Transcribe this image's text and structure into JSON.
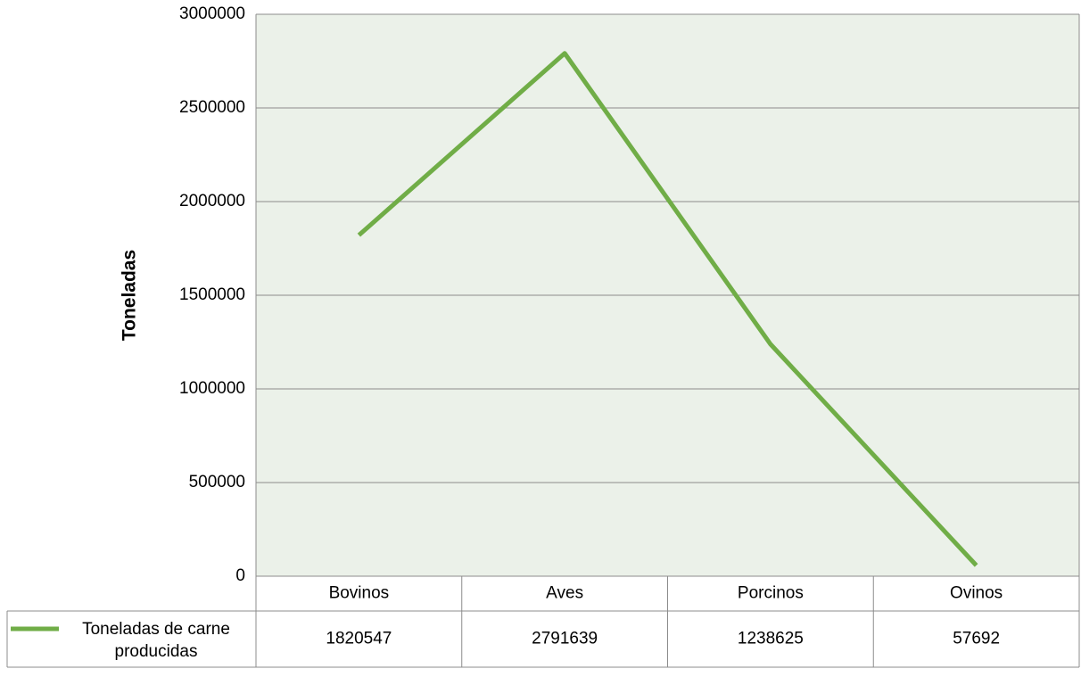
{
  "chart_data": {
    "type": "line",
    "categories": [
      "Bovinos",
      "Aves",
      "Porcinos",
      "Ovinos"
    ],
    "series": [
      {
        "name": "Toneladas de carne producidas",
        "color": "#70ad47",
        "values": [
          1820547,
          2791639,
          1238625,
          57692
        ]
      }
    ],
    "ylabel": "Toneladas",
    "ylim": [
      0,
      3000000
    ],
    "yticks": [
      0,
      500000,
      1000000,
      1500000,
      2000000,
      2500000,
      3000000
    ],
    "grid": true,
    "data_table": true
  }
}
